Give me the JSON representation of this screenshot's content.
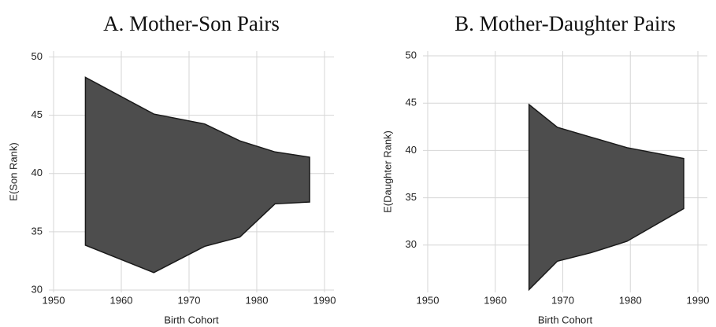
{
  "chart_data": [
    {
      "type": "range_area",
      "title": "A. Mother-Son Pairs",
      "x_label": "Birth Cohort",
      "y_label": "E(Son Rank)",
      "x": [
        1954.7,
        1964.8,
        1972.3,
        1977.5,
        1982.7,
        1987.8
      ],
      "upper": [
        48.25,
        45.1,
        44.25,
        42.8,
        41.85,
        41.4
      ],
      "lower": [
        33.85,
        31.5,
        33.75,
        34.55,
        37.4,
        37.55
      ],
      "color": "#4d4d4d",
      "xlim": [
        1949.3,
        1991.4
      ],
      "ylim": [
        29.8,
        50.5
      ],
      "xticks": [
        1950,
        1960,
        1970,
        1980,
        1990
      ],
      "yticks": [
        30,
        35,
        40,
        45,
        50
      ],
      "grid": true
    },
    {
      "type": "range_area",
      "title": "B. Mother-Daughter Pairs",
      "x_label": "Birth Cohort",
      "y_label": "E(Daughter Rank)",
      "x": [
        1965.0,
        1969.2,
        1974.2,
        1979.5,
        1987.9
      ],
      "upper": [
        44.85,
        42.45,
        41.4,
        40.3,
        39.15
      ],
      "lower": [
        25.3,
        28.3,
        29.2,
        30.4,
        33.85
      ],
      "color": "#4d4d4d",
      "xlim": [
        1949.3,
        1991.4
      ],
      "ylim": [
        25.0,
        50.5
      ],
      "xticks": [
        1950,
        1960,
        1970,
        1980,
        1990
      ],
      "yticks": [
        30,
        35,
        40,
        45,
        50
      ],
      "grid": true
    }
  ]
}
